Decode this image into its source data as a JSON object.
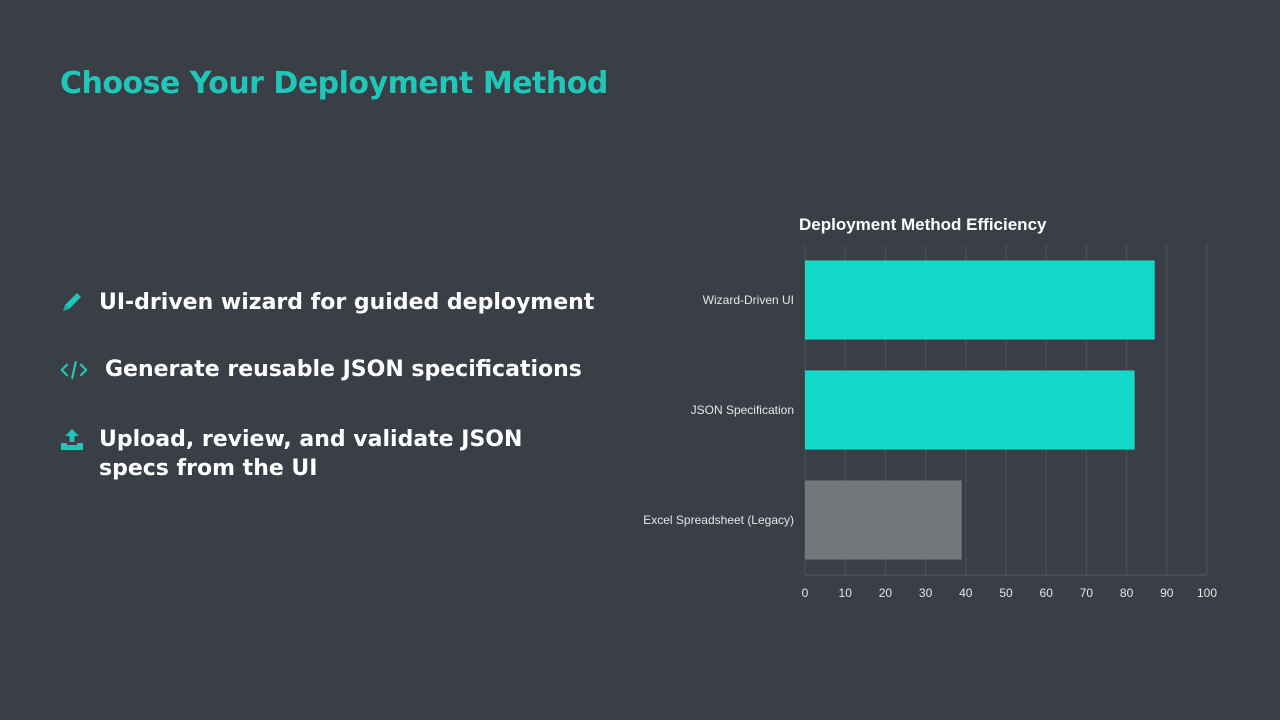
{
  "slide": {
    "title": "Choose Your Deployment Method"
  },
  "bullets": [
    {
      "icon": "pencil-icon",
      "text": "UI-driven wizard for guided deployment"
    },
    {
      "icon": "code-icon",
      "text": "Generate reusable JSON specifications"
    },
    {
      "icon": "upload-icon",
      "text": "Upload, review, and validate JSON specs from the UI"
    }
  ],
  "colors": {
    "accent": "#1fc7b8",
    "bar_primary": "#12d9c9",
    "bar_legacy": "#73777a",
    "background": "#3a3e46"
  },
  "chart_data": {
    "type": "bar",
    "orientation": "horizontal",
    "title": "Deployment Method Efficiency",
    "categories": [
      "Wizard-Driven UI",
      "JSON Specification",
      "Excel Spreadsheet (Legacy)"
    ],
    "values": [
      87,
      82,
      39
    ],
    "bar_colors": [
      "#12d9c9",
      "#12d9c9",
      "#73777a"
    ],
    "xlim": [
      0,
      100
    ],
    "xticks": [
      0,
      10,
      20,
      30,
      40,
      50,
      60,
      70,
      80,
      90,
      100
    ],
    "xlabel": "",
    "ylabel": "",
    "grid": true
  }
}
